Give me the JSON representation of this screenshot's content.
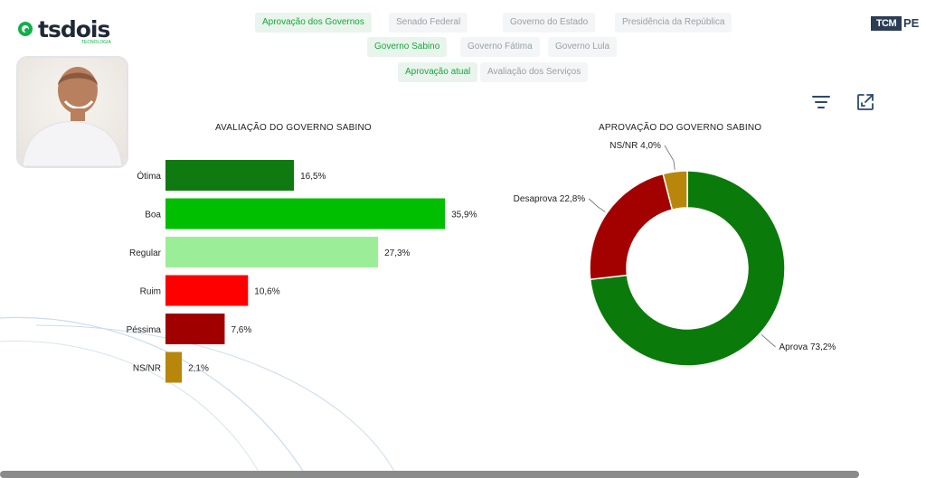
{
  "brand": {
    "logo_text": "tsdois",
    "logo_sub": "TECNOLOGIA"
  },
  "tcm": {
    "a": "TCM",
    "b": "PE"
  },
  "nav": {
    "row1": [
      "Aprovação dos Governos",
      "Senado Federal",
      "Governo do Estado",
      "Presidência da República"
    ],
    "row2": [
      "Governo Sabino",
      "Governo Fátima",
      "Governo Lula"
    ],
    "row3": [
      "Aprovação atual",
      "Avaliação dos Serviços"
    ],
    "active": [
      "Aprovação dos Governos",
      "Governo Sabino",
      "Aprovação atual"
    ]
  },
  "icons": {
    "filter": "filter-icon",
    "expand": "expand-icon"
  },
  "colors": {
    "accent": "#17a63c"
  },
  "chart_data": [
    {
      "type": "bar",
      "orientation": "horizontal",
      "title": "AVALIAÇÃO DO GOVERNO SABINO",
      "categories": [
        "Ótima",
        "Boa",
        "Regular",
        "Ruim",
        "Péssima",
        "NS/NR"
      ],
      "values": [
        16.5,
        35.9,
        27.3,
        10.6,
        7.6,
        2.1
      ],
      "labels": [
        "16,5%",
        "35,9%",
        "27,3%",
        "10,6%",
        "7,6%",
        "2,1%"
      ],
      "colors": [
        "#0f7a10",
        "#00bf00",
        "#9bee97",
        "#ff0000",
        "#a10000",
        "#b8860b"
      ],
      "xlim": [
        0,
        36
      ],
      "grid": false
    },
    {
      "type": "pie",
      "donut": true,
      "title": "APROVAÇÃO DO GOVERNO SABINO",
      "categories": [
        "Aprova",
        "Desaprova",
        "NS/NR"
      ],
      "values": [
        73.2,
        22.8,
        4.0
      ],
      "labels": [
        "Aprova 73,2%",
        "Desaprova 22,8%",
        "NS/NR 4,0%"
      ],
      "colors": [
        "#0a7a0a",
        "#a30000",
        "#b8860b"
      ]
    }
  ]
}
